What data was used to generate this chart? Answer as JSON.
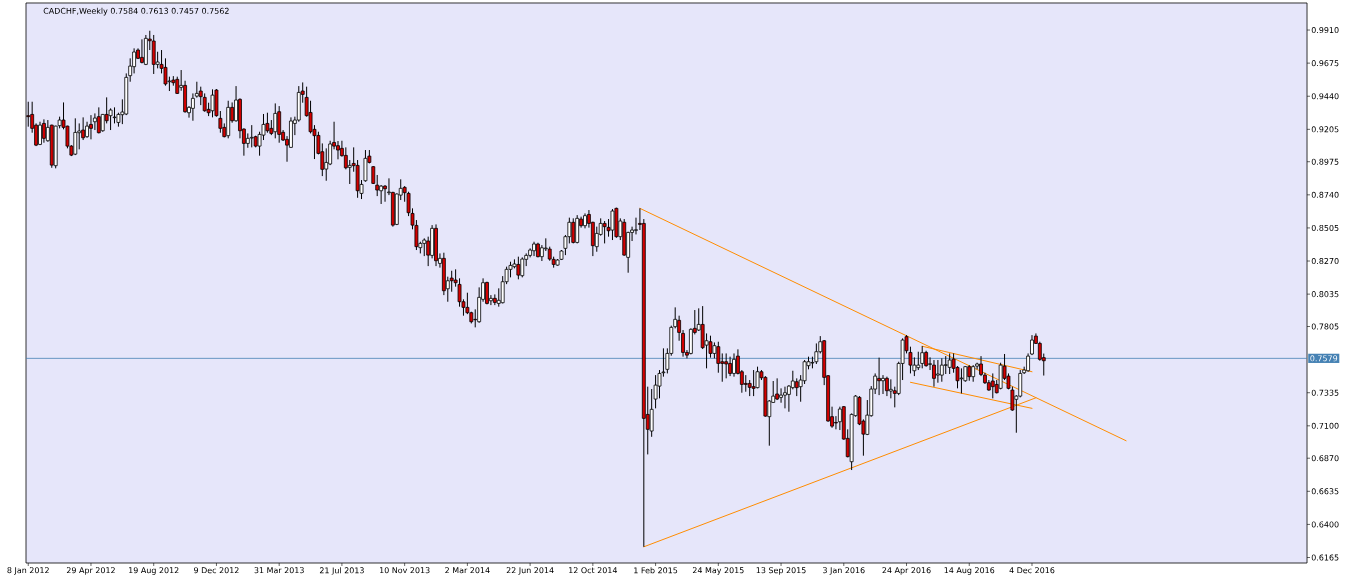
{
  "chart_data": {
    "type": "candlestick",
    "title": "CADCHF,Weekly  0.7584 0.7613 0.7457 0.7562",
    "x": [
      "2012-01-08",
      "2012-01-15",
      "2012-01-22",
      "2012-01-29",
      "2012-02-05",
      "2012-02-12",
      "2012-02-19",
      "2012-02-26",
      "2012-03-04",
      "2012-03-11",
      "2012-03-18",
      "2012-03-25",
      "2012-04-01",
      "2012-04-08",
      "2012-04-15",
      "2012-04-22",
      "2012-04-29",
      "2012-05-06",
      "2012-05-13",
      "2012-05-20",
      "2012-05-27",
      "2012-06-03",
      "2012-06-10",
      "2012-06-17",
      "2012-06-24",
      "2012-07-01",
      "2012-07-08",
      "2012-07-15",
      "2012-07-22",
      "2012-07-29",
      "2012-08-05",
      "2012-08-12",
      "2012-08-19",
      "2012-08-26",
      "2012-09-02",
      "2012-09-09",
      "2012-09-16",
      "2012-09-23",
      "2012-09-30",
      "2012-10-07",
      "2012-10-14",
      "2012-10-21",
      "2012-10-28",
      "2012-11-04",
      "2012-11-11",
      "2012-11-18",
      "2012-11-25",
      "2012-12-02",
      "2012-12-09",
      "2012-12-16",
      "2012-12-23",
      "2012-12-30",
      "2013-01-06",
      "2013-01-13",
      "2013-01-20",
      "2013-01-27",
      "2013-02-03",
      "2013-02-10",
      "2013-02-17",
      "2013-02-24",
      "2013-03-03",
      "2013-03-10",
      "2013-03-17",
      "2013-03-24",
      "2013-03-31",
      "2013-04-07",
      "2013-04-14",
      "2013-04-21",
      "2013-04-28",
      "2013-05-05",
      "2013-05-12",
      "2013-05-19",
      "2013-05-26",
      "2013-06-02",
      "2013-06-09",
      "2013-06-16",
      "2013-06-23",
      "2013-06-30",
      "2013-07-07",
      "2013-07-14",
      "2013-07-21",
      "2013-07-28",
      "2013-08-04",
      "2013-08-11",
      "2013-08-18",
      "2013-08-25",
      "2013-09-01",
      "2013-09-08",
      "2013-09-15",
      "2013-09-22",
      "2013-09-29",
      "2013-10-06",
      "2013-10-13",
      "2013-10-20",
      "2013-10-27",
      "2013-11-03",
      "2013-11-10",
      "2013-11-17",
      "2013-11-24",
      "2013-12-01",
      "2013-12-08",
      "2013-12-15",
      "2013-12-22",
      "2013-12-29",
      "2014-01-05",
      "2014-01-12",
      "2014-01-19",
      "2014-01-26",
      "2014-02-02",
      "2014-02-09",
      "2014-02-16",
      "2014-02-23",
      "2014-03-02",
      "2014-03-09",
      "2014-03-16",
      "2014-03-23",
      "2014-03-30",
      "2014-04-06",
      "2014-04-13",
      "2014-04-20",
      "2014-04-27",
      "2014-05-04",
      "2014-05-11",
      "2014-05-18",
      "2014-05-25",
      "2014-06-01",
      "2014-06-08",
      "2014-06-15",
      "2014-06-22",
      "2014-06-29",
      "2014-07-06",
      "2014-07-13",
      "2014-07-20",
      "2014-07-27",
      "2014-08-03",
      "2014-08-10",
      "2014-08-17",
      "2014-08-24",
      "2014-08-31",
      "2014-09-07",
      "2014-09-14",
      "2014-09-21",
      "2014-09-28",
      "2014-10-05",
      "2014-10-12",
      "2014-10-19",
      "2014-10-26",
      "2014-11-02",
      "2014-11-09",
      "2014-11-16",
      "2014-11-23",
      "2014-11-30",
      "2014-12-07",
      "2014-12-14",
      "2014-12-21",
      "2014-12-28",
      "2015-01-04",
      "2015-01-11",
      "2015-01-18",
      "2015-01-25",
      "2015-02-01",
      "2015-02-08",
      "2015-02-15",
      "2015-02-22",
      "2015-03-01",
      "2015-03-08",
      "2015-03-15",
      "2015-03-22",
      "2015-03-29",
      "2015-04-05",
      "2015-04-12",
      "2015-04-19",
      "2015-04-26",
      "2015-05-03",
      "2015-05-10",
      "2015-05-17",
      "2015-05-24",
      "2015-05-31",
      "2015-06-07",
      "2015-06-14",
      "2015-06-21",
      "2015-06-28",
      "2015-07-05",
      "2015-07-12",
      "2015-07-19",
      "2015-07-26",
      "2015-08-02",
      "2015-08-09",
      "2015-08-16",
      "2015-08-23",
      "2015-08-30",
      "2015-09-06",
      "2015-09-13",
      "2015-09-20",
      "2015-09-27",
      "2015-10-04",
      "2015-10-11",
      "2015-10-18",
      "2015-10-25",
      "2015-11-01",
      "2015-11-08",
      "2015-11-15",
      "2015-11-22",
      "2015-11-29",
      "2015-12-06",
      "2015-12-13",
      "2015-12-20",
      "2015-12-27",
      "2016-01-03",
      "2016-01-10",
      "2016-01-17",
      "2016-01-24",
      "2016-01-31",
      "2016-02-07",
      "2016-02-14",
      "2016-02-21",
      "2016-02-28",
      "2016-03-06",
      "2016-03-13",
      "2016-03-20",
      "2016-03-27",
      "2016-04-03",
      "2016-04-10",
      "2016-04-17",
      "2016-04-24",
      "2016-05-01",
      "2016-05-08",
      "2016-05-15",
      "2016-05-22",
      "2016-05-29",
      "2016-06-05",
      "2016-06-12",
      "2016-06-19",
      "2016-06-26",
      "2016-07-03",
      "2016-07-10",
      "2016-07-17",
      "2016-07-24",
      "2016-07-31",
      "2016-08-07",
      "2016-08-14",
      "2016-08-21",
      "2016-08-28",
      "2016-09-04",
      "2016-09-11",
      "2016-09-18",
      "2016-09-25",
      "2016-10-02",
      "2016-10-09",
      "2016-10-16",
      "2016-10-23",
      "2016-10-30",
      "2016-11-06",
      "2016-11-13",
      "2016-11-20",
      "2016-11-27",
      "2016-12-04",
      "2016-12-11",
      "2016-12-18",
      "2016-12-25"
    ],
    "ohlc": [
      [
        0.9302,
        0.9401,
        0.9224,
        0.9295
      ],
      [
        0.9311,
        0.9401,
        0.9181,
        0.9212
      ],
      [
        0.9235,
        0.9247,
        0.9086,
        0.9093
      ],
      [
        0.9098,
        0.9259,
        0.9093,
        0.9235
      ],
      [
        0.9247,
        0.9276,
        0.911,
        0.9141
      ],
      [
        0.9124,
        0.9271,
        0.9117,
        0.9219
      ],
      [
        0.9235,
        0.9238,
        0.8932,
        0.8951
      ],
      [
        0.8947,
        0.9231,
        0.8928,
        0.9228
      ],
      [
        0.9231,
        0.9295,
        0.9212,
        0.9271
      ],
      [
        0.9271,
        0.9396,
        0.9205,
        0.9219
      ],
      [
        0.9228,
        0.9231,
        0.907,
        0.9086
      ],
      [
        0.9086,
        0.9093,
        0.9015,
        0.9022
      ],
      [
        0.9029,
        0.9283,
        0.9022,
        0.9183
      ],
      [
        0.9181,
        0.9247,
        0.9063,
        0.9193
      ],
      [
        0.92,
        0.929,
        0.9129,
        0.9145
      ],
      [
        0.9153,
        0.9259,
        0.9145,
        0.9228
      ],
      [
        0.924,
        0.9306,
        0.9134,
        0.9212
      ],
      [
        0.9259,
        0.9318,
        0.92,
        0.9285
      ],
      [
        0.9295,
        0.9361,
        0.9176,
        0.9181
      ],
      [
        0.9195,
        0.9314,
        0.9188,
        0.9311
      ],
      [
        0.9311,
        0.9432,
        0.9247,
        0.9266
      ],
      [
        0.9302,
        0.9354,
        0.92,
        0.9342
      ],
      [
        0.9288,
        0.9361,
        0.9247,
        0.9292
      ],
      [
        0.9254,
        0.9323,
        0.9224,
        0.9311
      ],
      [
        0.9309,
        0.9418,
        0.9242,
        0.9328
      ],
      [
        0.9314,
        0.9602,
        0.9306,
        0.9574
      ],
      [
        0.9586,
        0.9709,
        0.9543,
        0.9654
      ],
      [
        0.965,
        0.978,
        0.9602,
        0.9754
      ],
      [
        0.9768,
        0.978,
        0.9704,
        0.9709
      ],
      [
        0.9716,
        0.9844,
        0.9673,
        0.968
      ],
      [
        0.9666,
        0.9875,
        0.9661,
        0.9851
      ],
      [
        0.9846,
        0.9905,
        0.9768,
        0.9834
      ],
      [
        0.9832,
        0.9875,
        0.9598,
        0.9666
      ],
      [
        0.9666,
        0.9756,
        0.9638,
        0.9683
      ],
      [
        0.9666,
        0.9768,
        0.9602,
        0.9638
      ],
      [
        0.9645,
        0.9709,
        0.9515,
        0.9527
      ],
      [
        0.9543,
        0.9579,
        0.9477,
        0.9548
      ],
      [
        0.9555,
        0.9583,
        0.9515,
        0.9536
      ],
      [
        0.956,
        0.9579,
        0.9456,
        0.946
      ],
      [
        0.9503,
        0.9626,
        0.9479,
        0.9517
      ],
      [
        0.9517,
        0.955,
        0.9323,
        0.933
      ],
      [
        0.9323,
        0.937,
        0.9288,
        0.9361
      ],
      [
        0.9354,
        0.946,
        0.9266,
        0.9425
      ],
      [
        0.9441,
        0.9543,
        0.943,
        0.946
      ],
      [
        0.9477,
        0.9508,
        0.9377,
        0.9437
      ],
      [
        0.9432,
        0.946,
        0.933,
        0.9337
      ],
      [
        0.9347,
        0.9394,
        0.9299,
        0.9323
      ],
      [
        0.9337,
        0.9489,
        0.929,
        0.9448
      ],
      [
        0.9484,
        0.9491,
        0.9295,
        0.9302
      ],
      [
        0.9283,
        0.9335,
        0.9181,
        0.9212
      ],
      [
        0.9219,
        0.9247,
        0.9148,
        0.9153
      ],
      [
        0.916,
        0.9408,
        0.9141,
        0.9361
      ],
      [
        0.9361,
        0.9396,
        0.9252,
        0.9266
      ],
      [
        0.9266,
        0.9512,
        0.9259,
        0.9413
      ],
      [
        0.9418,
        0.9425,
        0.9141,
        0.9195
      ],
      [
        0.9207,
        0.9212,
        0.9018,
        0.9105
      ],
      [
        0.9105,
        0.9176,
        0.9074,
        0.9141
      ],
      [
        0.9143,
        0.9235,
        0.9077,
        0.9148
      ],
      [
        0.9153,
        0.916,
        0.9077,
        0.9086
      ],
      [
        0.9086,
        0.9188,
        0.9018,
        0.9169
      ],
      [
        0.9164,
        0.9314,
        0.9129,
        0.924
      ],
      [
        0.9247,
        0.9323,
        0.9181,
        0.9195
      ],
      [
        0.9212,
        0.9271,
        0.9164,
        0.9176
      ],
      [
        0.9188,
        0.9389,
        0.9141,
        0.9318
      ],
      [
        0.933,
        0.937,
        0.911,
        0.9169
      ],
      [
        0.9184,
        0.92,
        0.9122,
        0.9129
      ],
      [
        0.9134,
        0.9157,
        0.8975,
        0.9093
      ],
      [
        0.9077,
        0.929,
        0.9074,
        0.9264
      ],
      [
        0.9247,
        0.9295,
        0.9164,
        0.9271
      ],
      [
        0.9271,
        0.9512,
        0.9259,
        0.9467
      ],
      [
        0.9477,
        0.9538,
        0.9394,
        0.9453
      ],
      [
        0.9432,
        0.9508,
        0.9295,
        0.9302
      ],
      [
        0.9325,
        0.9408,
        0.9176,
        0.9188
      ],
      [
        0.9205,
        0.9235,
        0.8994,
        0.916
      ],
      [
        0.9162,
        0.9188,
        0.9027,
        0.9034
      ],
      [
        0.9046,
        0.9105,
        0.8873,
        0.8921
      ],
      [
        0.8923,
        0.907,
        0.884,
        0.897
      ],
      [
        0.8959,
        0.9124,
        0.8951,
        0.9101
      ],
      [
        0.9112,
        0.9259,
        0.9063,
        0.9086
      ],
      [
        0.9089,
        0.9122,
        0.8992,
        0.9058
      ],
      [
        0.907,
        0.9124,
        0.9011,
        0.9018
      ],
      [
        0.902,
        0.9077,
        0.8921,
        0.8932
      ],
      [
        0.8935,
        0.8987,
        0.8817,
        0.8949
      ],
      [
        0.8963,
        0.9077,
        0.8904,
        0.8947
      ],
      [
        0.8949,
        0.8987,
        0.8719,
        0.8769
      ],
      [
        0.875,
        0.8845,
        0.871,
        0.8814
      ],
      [
        0.884,
        0.9058,
        0.8833,
        0.8999
      ],
      [
        0.9015,
        0.9058,
        0.8963,
        0.897
      ],
      [
        0.894,
        0.8944,
        0.8817,
        0.8821
      ],
      [
        0.8809,
        0.8881,
        0.8731,
        0.8774
      ],
      [
        0.8769,
        0.8809,
        0.8675,
        0.8802
      ],
      [
        0.8802,
        0.8809,
        0.8691,
        0.8783
      ],
      [
        0.8755,
        0.8857,
        0.8738,
        0.876
      ],
      [
        0.8757,
        0.8762,
        0.8514,
        0.8525
      ],
      [
        0.853,
        0.875,
        0.8525,
        0.8746
      ],
      [
        0.8738,
        0.885,
        0.8703,
        0.8786
      ],
      [
        0.8793,
        0.8802,
        0.8691,
        0.8755
      ],
      [
        0.875,
        0.8762,
        0.8589,
        0.8613
      ],
      [
        0.8608,
        0.8644,
        0.8495,
        0.8525
      ],
      [
        0.8523,
        0.8561,
        0.8348,
        0.8372
      ],
      [
        0.8365,
        0.8407,
        0.8324,
        0.8395
      ],
      [
        0.8395,
        0.8431,
        0.8305,
        0.8419
      ],
      [
        0.8412,
        0.8443,
        0.8234,
        0.8312
      ],
      [
        0.831,
        0.8525,
        0.8289,
        0.8502
      ],
      [
        0.8502,
        0.853,
        0.8234,
        0.8272
      ],
      [
        0.8253,
        0.8324,
        0.8223,
        0.8289
      ],
      [
        0.8289,
        0.8329,
        0.8028,
        0.8059
      ],
      [
        0.8073,
        0.8159,
        0.7981,
        0.813
      ],
      [
        0.8149,
        0.8201,
        0.8052,
        0.813
      ],
      [
        0.8135,
        0.8211,
        0.8088,
        0.8116
      ],
      [
        0.8104,
        0.8147,
        0.7946,
        0.7981
      ],
      [
        0.7981,
        0.7998,
        0.7882,
        0.7941
      ],
      [
        0.7941,
        0.8045,
        0.7893,
        0.7903
      ],
      [
        0.7903,
        0.791,
        0.7827,
        0.7839
      ],
      [
        0.7856,
        0.7927,
        0.7799,
        0.7853
      ],
      [
        0.7839,
        0.8083,
        0.7832,
        0.8012
      ],
      [
        0.7998,
        0.8147,
        0.7981,
        0.8116
      ],
      [
        0.8118,
        0.8123,
        0.7962,
        0.7969
      ],
      [
        0.7988,
        0.8028,
        0.7957,
        0.8005
      ],
      [
        0.8005,
        0.8033,
        0.7957,
        0.7976
      ],
      [
        0.7969,
        0.8076,
        0.7946,
        0.7991
      ],
      [
        0.7974,
        0.8163,
        0.7969,
        0.8123
      ],
      [
        0.8123,
        0.823,
        0.8106,
        0.8211
      ],
      [
        0.8211,
        0.8265,
        0.8154,
        0.8239
      ],
      [
        0.823,
        0.8282,
        0.8218,
        0.8249
      ],
      [
        0.8246,
        0.8301,
        0.814,
        0.817
      ],
      [
        0.8166,
        0.8296,
        0.8154,
        0.8284
      ],
      [
        0.8282,
        0.8324,
        0.8234,
        0.831
      ],
      [
        0.831,
        0.836,
        0.8296,
        0.8348
      ],
      [
        0.8343,
        0.8407,
        0.8305,
        0.8391
      ],
      [
        0.8391,
        0.84,
        0.8296,
        0.8301
      ],
      [
        0.8301,
        0.8383,
        0.827,
        0.8364
      ],
      [
        0.8357,
        0.8431,
        0.8341,
        0.8362
      ],
      [
        0.8355,
        0.8372,
        0.8272,
        0.8284
      ],
      [
        0.8282,
        0.8301,
        0.8223,
        0.8246
      ],
      [
        0.8241,
        0.8284,
        0.8237,
        0.8277
      ],
      [
        0.8282,
        0.8348,
        0.8277,
        0.8341
      ],
      [
        0.836,
        0.8455,
        0.8312,
        0.8443
      ],
      [
        0.8443,
        0.8578,
        0.8395,
        0.8545
      ],
      [
        0.8545,
        0.8573,
        0.8395,
        0.8402
      ],
      [
        0.8402,
        0.8596,
        0.8395,
        0.8573
      ],
      [
        0.8568,
        0.8585,
        0.8507,
        0.8521
      ],
      [
        0.8521,
        0.8608,
        0.8502,
        0.8592
      ],
      [
        0.8601,
        0.8632,
        0.8507,
        0.8537
      ],
      [
        0.8545,
        0.8549,
        0.8305,
        0.8379
      ],
      [
        0.8372,
        0.8514,
        0.8336,
        0.8466
      ],
      [
        0.8459,
        0.8573,
        0.845,
        0.8537
      ],
      [
        0.8537,
        0.8554,
        0.8395,
        0.8514
      ],
      [
        0.8509,
        0.8568,
        0.8443,
        0.8485
      ],
      [
        0.849,
        0.8639,
        0.8419,
        0.8625
      ],
      [
        0.8644,
        0.8649,
        0.8435,
        0.8443
      ],
      [
        0.8443,
        0.8573,
        0.8419,
        0.8554
      ],
      [
        0.8545,
        0.8568,
        0.8308,
        0.8312
      ],
      [
        0.8296,
        0.8478,
        0.8187,
        0.8473
      ],
      [
        0.8473,
        0.8514,
        0.8412,
        0.849
      ],
      [
        0.8488,
        0.8578,
        0.8459,
        0.8492
      ],
      [
        0.8537,
        0.8644,
        0.849,
        0.853
      ],
      [
        0.8537,
        0.8568,
        0.6241,
        0.7153
      ],
      [
        0.7181,
        0.7378,
        0.6897,
        0.7075
      ],
      [
        0.7063,
        0.7361,
        0.7022,
        0.7217
      ],
      [
        0.729,
        0.746,
        0.7224,
        0.7389
      ],
      [
        0.7382,
        0.7496,
        0.7295,
        0.7472
      ],
      [
        0.7477,
        0.765,
        0.7449,
        0.7482
      ],
      [
        0.7501,
        0.765,
        0.7472,
        0.7614
      ],
      [
        0.7614,
        0.7811,
        0.7598,
        0.7799
      ],
      [
        0.7804,
        0.7941,
        0.7792,
        0.7856
      ],
      [
        0.7849,
        0.7882,
        0.7704,
        0.7763
      ],
      [
        0.7756,
        0.778,
        0.7591,
        0.7621
      ],
      [
        0.7621,
        0.7638,
        0.7579,
        0.7602
      ],
      [
        0.7614,
        0.7792,
        0.7607,
        0.7785
      ],
      [
        0.7792,
        0.7922,
        0.7749,
        0.7763
      ],
      [
        0.778,
        0.7934,
        0.7773,
        0.782
      ],
      [
        0.782,
        0.795,
        0.7645,
        0.7655
      ],
      [
        0.7673,
        0.7756,
        0.7508,
        0.7704
      ],
      [
        0.7697,
        0.774,
        0.7584,
        0.7614
      ],
      [
        0.7614,
        0.7692,
        0.7579,
        0.7669
      ],
      [
        0.7662,
        0.7697,
        0.7477,
        0.7543
      ],
      [
        0.7555,
        0.7614,
        0.7413,
        0.7543
      ],
      [
        0.7555,
        0.7614,
        0.7437,
        0.7539
      ],
      [
        0.7543,
        0.7591,
        0.7453,
        0.7472
      ],
      [
        0.7472,
        0.7614,
        0.7449,
        0.7572
      ],
      [
        0.7595,
        0.7643,
        0.7465,
        0.7472
      ],
      [
        0.7484,
        0.7496,
        0.7335,
        0.7394
      ],
      [
        0.7401,
        0.746,
        0.7342,
        0.7394
      ],
      [
        0.7401,
        0.7425,
        0.7311,
        0.7373
      ],
      [
        0.7378,
        0.7496,
        0.7311,
        0.7366
      ],
      [
        0.7371,
        0.752,
        0.7366,
        0.7484
      ],
      [
        0.7484,
        0.7496,
        0.7425,
        0.7441
      ],
      [
        0.7444,
        0.7453,
        0.7165,
        0.7169
      ],
      [
        0.7165,
        0.7283,
        0.6959,
        0.7276
      ],
      [
        0.7266,
        0.7418,
        0.7264,
        0.7311
      ],
      [
        0.7326,
        0.7437,
        0.7283,
        0.729
      ],
      [
        0.7302,
        0.7366,
        0.7264,
        0.7318
      ],
      [
        0.7318,
        0.7378,
        0.7224,
        0.7335
      ],
      [
        0.7323,
        0.7389,
        0.72,
        0.7382
      ],
      [
        0.7371,
        0.7491,
        0.7359,
        0.7418
      ],
      [
        0.7413,
        0.7437,
        0.7311,
        0.7371
      ],
      [
        0.7378,
        0.746,
        0.7271,
        0.7425
      ],
      [
        0.742,
        0.7567,
        0.7397,
        0.7555
      ],
      [
        0.7527,
        0.7591,
        0.7501,
        0.7555
      ],
      [
        0.7546,
        0.7591,
        0.7508,
        0.755
      ],
      [
        0.7555,
        0.7685,
        0.7539,
        0.7626
      ],
      [
        0.7626,
        0.7737,
        0.7614,
        0.7697
      ],
      [
        0.7704,
        0.7709,
        0.7389,
        0.7444
      ],
      [
        0.7456,
        0.746,
        0.7129,
        0.7134
      ],
      [
        0.7165,
        0.7236,
        0.7086,
        0.7098
      ],
      [
        0.7124,
        0.7169,
        0.7075,
        0.712
      ],
      [
        0.7129,
        0.7236,
        0.707,
        0.7219
      ],
      [
        0.7236,
        0.724,
        0.7001,
        0.7006
      ],
      [
        0.7011,
        0.7075,
        0.6876,
        0.6881
      ],
      [
        0.6845,
        0.7188,
        0.6786,
        0.7181
      ],
      [
        0.7172,
        0.7318,
        0.7165,
        0.7311
      ],
      [
        0.7302,
        0.7311,
        0.7105,
        0.7113
      ],
      [
        0.7134,
        0.7146,
        0.6888,
        0.7041
      ],
      [
        0.7039,
        0.7283,
        0.7034,
        0.7176
      ],
      [
        0.7172,
        0.7382,
        0.7165,
        0.7361
      ],
      [
        0.7361,
        0.7472,
        0.7326,
        0.7453
      ],
      [
        0.7437,
        0.7584,
        0.7318,
        0.742
      ],
      [
        0.742,
        0.746,
        0.7326,
        0.7437
      ],
      [
        0.7437,
        0.7449,
        0.7311,
        0.7349
      ],
      [
        0.7347,
        0.743,
        0.7295,
        0.7359
      ],
      [
        0.7349,
        0.7378,
        0.7231,
        0.733
      ],
      [
        0.733,
        0.7555,
        0.7318,
        0.7543
      ],
      [
        0.7543,
        0.7721,
        0.7425,
        0.7709
      ],
      [
        0.7733,
        0.7744,
        0.7614,
        0.7633
      ],
      [
        0.7621,
        0.7662,
        0.7472,
        0.7531
      ],
      [
        0.7491,
        0.7586,
        0.7453,
        0.7531
      ],
      [
        0.7513,
        0.7626,
        0.7496,
        0.7531
      ],
      [
        0.7543,
        0.7666,
        0.7508,
        0.7619
      ],
      [
        0.7621,
        0.7633,
        0.752,
        0.7527
      ],
      [
        0.7536,
        0.7586,
        0.7496,
        0.7541
      ],
      [
        0.7531,
        0.7567,
        0.7378,
        0.7437
      ],
      [
        0.746,
        0.7567,
        0.7406,
        0.7468
      ],
      [
        0.746,
        0.7579,
        0.7413,
        0.7531
      ],
      [
        0.7529,
        0.7595,
        0.7468,
        0.7534
      ],
      [
        0.7515,
        0.7614,
        0.7468,
        0.7567
      ],
      [
        0.7574,
        0.7614,
        0.7477,
        0.7508
      ],
      [
        0.7515,
        0.7524,
        0.7366,
        0.742
      ],
      [
        0.7434,
        0.7508,
        0.733,
        0.7439
      ],
      [
        0.742,
        0.7524,
        0.7413,
        0.752
      ],
      [
        0.752,
        0.7531,
        0.742,
        0.7449
      ],
      [
        0.7449,
        0.7531,
        0.7413,
        0.752
      ],
      [
        0.7524,
        0.7548,
        0.7501,
        0.7539
      ],
      [
        0.7539,
        0.7595,
        0.7453,
        0.7465
      ],
      [
        0.746,
        0.7477,
        0.7397,
        0.7406
      ],
      [
        0.7406,
        0.7425,
        0.7349,
        0.7354
      ],
      [
        0.7418,
        0.7472,
        0.7295,
        0.7378
      ],
      [
        0.7394,
        0.7425,
        0.733,
        0.7335
      ],
      [
        0.7366,
        0.7548,
        0.7359,
        0.7531
      ],
      [
        0.7524,
        0.761,
        0.7425,
        0.7437
      ],
      [
        0.7453,
        0.7472,
        0.7359,
        0.7366
      ],
      [
        0.7354,
        0.7378,
        0.7207,
        0.7212
      ],
      [
        0.7288,
        0.7318,
        0.7051,
        0.7311
      ],
      [
        0.7311,
        0.7496,
        0.7302,
        0.7472
      ],
      [
        0.7477,
        0.752,
        0.7468,
        0.7496
      ],
      [
        0.7491,
        0.7614,
        0.7484,
        0.7595
      ],
      [
        0.761,
        0.7744,
        0.7602,
        0.7709
      ],
      [
        0.7737,
        0.7756,
        0.7681,
        0.7685
      ],
      [
        0.7685,
        0.7697,
        0.7562,
        0.7572
      ],
      [
        0.7584,
        0.7613,
        0.7457,
        0.7562
      ]
    ],
    "series": [
      {
        "type": "line",
        "color": "#ff8c00",
        "x": [
          "2015-01-04",
          "2017-05-21"
        ],
        "values": [
          0.8644,
          0.6994
        ]
      },
      {
        "type": "line",
        "color": "#ff8c00",
        "x": [
          "2015-01-11",
          "2016-12-11"
        ],
        "values": [
          0.6241,
          0.7299
        ]
      },
      {
        "type": "line",
        "color": "#ff8c00",
        "x": [
          "2016-05-22",
          "2016-12-04"
        ],
        "values": [
          0.7665,
          0.7484
        ]
      },
      {
        "type": "line",
        "color": "#ff8c00",
        "x": [
          "2016-05-01",
          "2016-12-04"
        ],
        "values": [
          0.7409,
          0.7224
        ]
      }
    ],
    "xlim": [
      "2012-01-04",
      "2018-04-09"
    ],
    "xticks": [
      {
        "value": "2012-01-08",
        "label": "8 Jan 2012"
      },
      {
        "value": "2012-04-29",
        "label": "29 Apr 2012"
      },
      {
        "value": "2012-08-19",
        "label": "19 Aug 2012"
      },
      {
        "value": "2012-12-09",
        "label": "9 Dec 2012"
      },
      {
        "value": "2013-03-31",
        "label": "31 Mar 2013"
      },
      {
        "value": "2013-07-21",
        "label": "21 Jul 2013"
      },
      {
        "value": "2013-11-10",
        "label": "10 Nov 2013"
      },
      {
        "value": "2014-03-02",
        "label": "2 Mar 2014"
      },
      {
        "value": "2014-06-22",
        "label": "22 Jun 2014"
      },
      {
        "value": "2014-10-12",
        "label": "12 Oct 2014"
      },
      {
        "value": "2015-02-01",
        "label": "1 Feb 2015"
      },
      {
        "value": "2015-05-24",
        "label": "24 May 2015"
      },
      {
        "value": "2015-09-13",
        "label": "13 Sep 2015"
      },
      {
        "value": "2016-01-03",
        "label": "3 Jan 2016"
      },
      {
        "value": "2016-04-24",
        "label": "24 Apr 2016"
      },
      {
        "value": "2016-08-14",
        "label": "14 Aug 2016"
      },
      {
        "value": "2016-12-04",
        "label": "4 Dec 2016"
      }
    ],
    "ylim": [
      0.6126,
      1.0102
    ],
    "yticks": [
      {
        "value": 0.991,
        "label": "0.9910"
      },
      {
        "value": 0.9675,
        "label": "0.9675"
      },
      {
        "value": 0.944,
        "label": "0.9440"
      },
      {
        "value": 0.9205,
        "label": "0.9205"
      },
      {
        "value": 0.8975,
        "label": "0.8975"
      },
      {
        "value": 0.874,
        "label": "0.8740"
      },
      {
        "value": 0.8505,
        "label": "0.8505"
      },
      {
        "value": 0.827,
        "label": "0.8270"
      },
      {
        "value": 0.8035,
        "label": "0.8035"
      },
      {
        "value": 0.7805,
        "label": "0.7805"
      },
      {
        "value": 0.7335,
        "label": "0.7335"
      },
      {
        "value": 0.71,
        "label": "0.7100"
      },
      {
        "value": 0.687,
        "label": "0.6870"
      },
      {
        "value": 0.6635,
        "label": "0.6635"
      },
      {
        "value": 0.64,
        "label": "0.6400"
      },
      {
        "value": 0.6165,
        "label": "0.6165"
      }
    ],
    "ref_lines": [
      {
        "axis": "y",
        "value": 0.7579,
        "label": "0.7579",
        "color": "#4682b4"
      }
    ]
  }
}
